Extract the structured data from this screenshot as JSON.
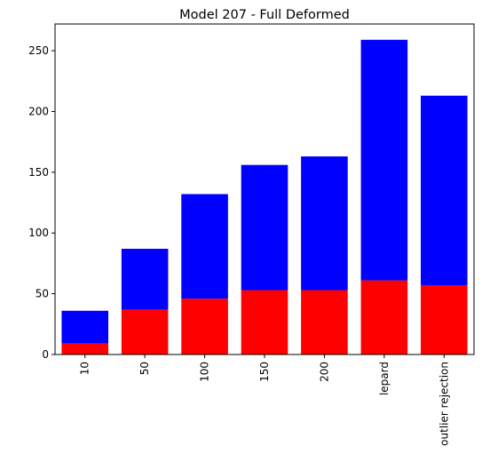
{
  "chart_data": {
    "type": "bar",
    "stacked": true,
    "title": "Model 207 - Full Deformed",
    "xlabel": "",
    "ylabel": "",
    "categories": [
      "10",
      "50",
      "100",
      "150",
      "200",
      "lepard",
      "outlier rejection"
    ],
    "series": [
      {
        "color": "#ff0000",
        "values": [
          9,
          37,
          46,
          53,
          53,
          61,
          57
        ]
      },
      {
        "color": "#0000ff",
        "values": [
          27,
          50,
          86,
          103,
          110,
          198,
          156
        ]
      }
    ],
    "ylim": [
      0,
      272
    ],
    "yticks": [
      0,
      50,
      100,
      150,
      200,
      250
    ],
    "grid": false,
    "x_tick_rotation": 90
  }
}
